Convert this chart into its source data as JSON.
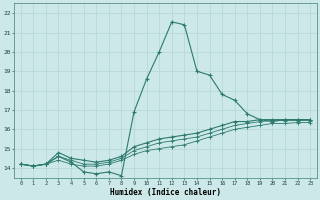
{
  "title": "",
  "xlabel": "Humidex (Indice chaleur)",
  "ylabel": "",
  "xlim": [
    -0.5,
    23.5
  ],
  "ylim": [
    13.5,
    22.5
  ],
  "yticks": [
    14,
    15,
    16,
    17,
    18,
    19,
    20,
    21,
    22
  ],
  "xticks": [
    0,
    1,
    2,
    3,
    4,
    5,
    6,
    7,
    8,
    9,
    10,
    11,
    12,
    13,
    14,
    15,
    16,
    17,
    18,
    19,
    20,
    21,
    22,
    23
  ],
  "bg_color": "#cce8e8",
  "grid_color": "#b8d8d8",
  "line_color": "#2d7a6e",
  "lines": {
    "max": [
      14.2,
      14.1,
      14.2,
      14.6,
      14.3,
      13.8,
      13.7,
      13.8,
      13.6,
      16.9,
      18.6,
      20.0,
      21.55,
      21.4,
      19.0,
      18.8,
      17.8,
      17.5,
      16.8,
      16.5,
      16.4,
      16.5,
      16.5,
      16.5
    ],
    "avg": [
      14.2,
      14.1,
      14.2,
      14.8,
      14.5,
      14.4,
      14.3,
      14.4,
      14.6,
      15.1,
      15.3,
      15.5,
      15.6,
      15.7,
      15.8,
      16.0,
      16.2,
      16.4,
      16.4,
      16.5,
      16.5,
      16.5,
      16.5,
      16.5
    ],
    "p75": [
      14.2,
      14.1,
      14.2,
      14.6,
      14.4,
      14.2,
      14.2,
      14.3,
      14.5,
      14.9,
      15.1,
      15.3,
      15.4,
      15.5,
      15.6,
      15.8,
      16.0,
      16.2,
      16.3,
      16.4,
      16.45,
      16.45,
      16.45,
      16.45
    ],
    "p25": [
      14.2,
      14.1,
      14.2,
      14.4,
      14.2,
      14.1,
      14.1,
      14.2,
      14.4,
      14.7,
      14.9,
      15.0,
      15.1,
      15.2,
      15.4,
      15.6,
      15.8,
      16.0,
      16.1,
      16.2,
      16.3,
      16.3,
      16.35,
      16.35
    ]
  }
}
